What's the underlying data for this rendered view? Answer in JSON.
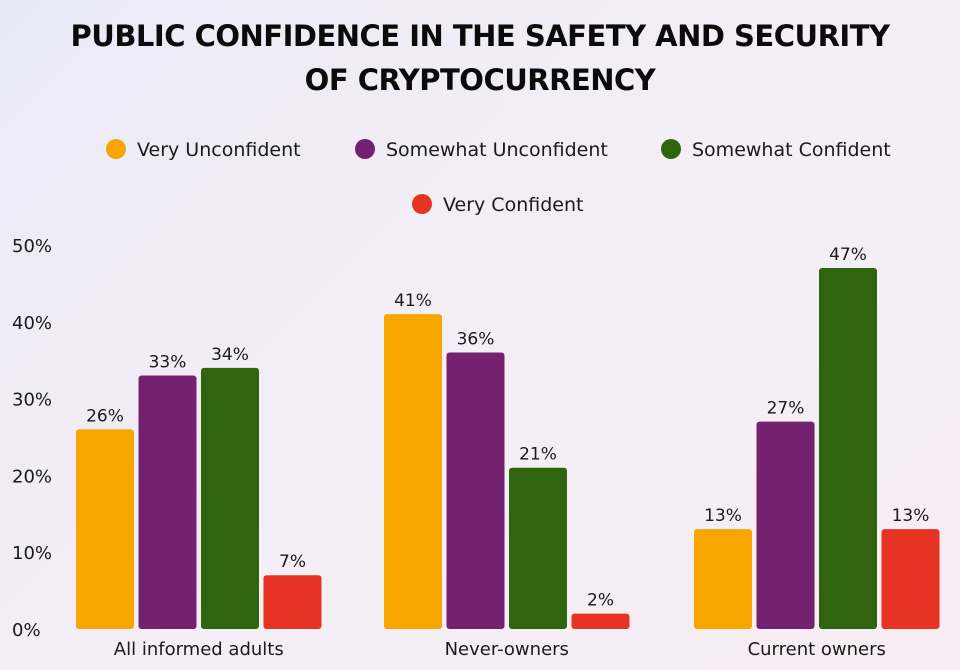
{
  "chart_data": {
    "type": "bar",
    "title_lines": [
      "PUBLIC CONFIDENCE IN THE SAFETY AND SECURITY",
      "OF CRYPTOCURRENCY"
    ],
    "categories": [
      "All informed adults",
      "Never-owners",
      "Current owners"
    ],
    "series": [
      {
        "name": "Very Unconfident",
        "color": "#f7a600",
        "values": [
          26,
          41,
          13
        ]
      },
      {
        "name": "Somewhat Unconfident",
        "color": "#74226f",
        "values": [
          33,
          36,
          27
        ]
      },
      {
        "name": "Somewhat Confident",
        "color": "#2f650f",
        "values": [
          34,
          21,
          47
        ]
      },
      {
        "name": "Very Confident",
        "color": "#e63323",
        "values": [
          7,
          2,
          13
        ]
      }
    ],
    "value_suffix": "%",
    "yticks": [
      "0%",
      "10%",
      "20%",
      "30%",
      "40%",
      "50%"
    ],
    "ylim": [
      0,
      50
    ],
    "legend_position": "top-center"
  }
}
